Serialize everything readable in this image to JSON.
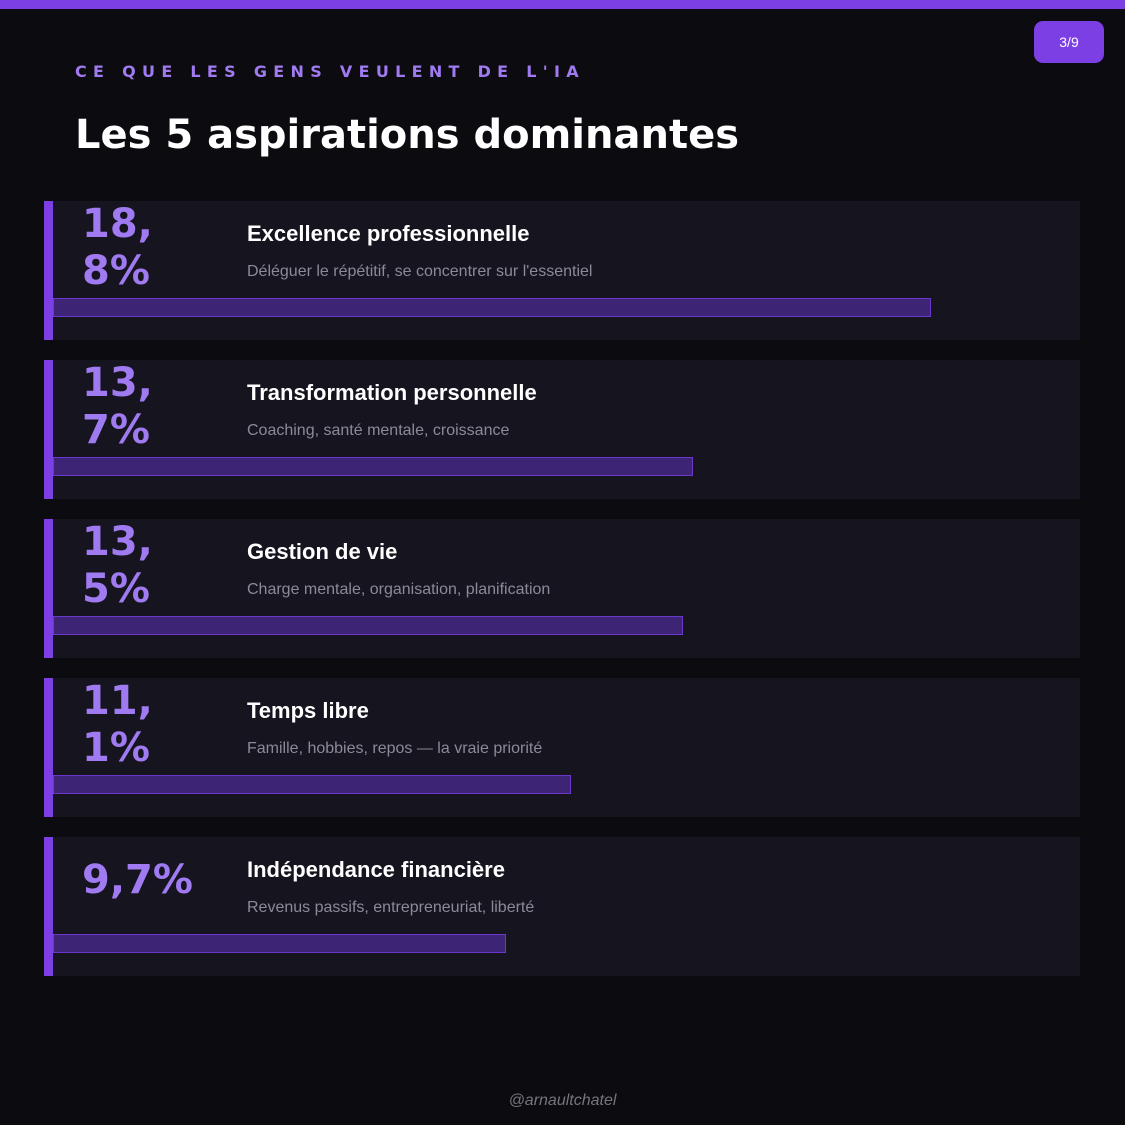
{
  "header": {
    "page_indicator": "3/9",
    "kicker": "CE QUE LES GENS VEULENT DE L'IA",
    "title": "Les 5 aspirations dominantes"
  },
  "colors": {
    "accent": "#7b3fe4",
    "accent_light": "#a07af0",
    "bar_fill": "#3d2475",
    "background": "#0c0b10",
    "card": "#15141f"
  },
  "chart_data": {
    "type": "bar",
    "orientation": "horizontal",
    "title": "Les 5 aspirations dominantes",
    "unit": "%",
    "xlim": [
      0,
      22
    ],
    "categories": [
      "Excellence professionnelle",
      "Transformation personnelle",
      "Gestion de vie",
      "Temps libre",
      "Indépendance financière"
    ],
    "values": [
      18.8,
      13.7,
      13.5,
      11.1,
      9.7
    ],
    "items": [
      {
        "value": 18.8,
        "value_label": "18,8%",
        "label": "Excellence professionnelle",
        "description": "Déléguer le répétitif, se concentrer sur l'essentiel"
      },
      {
        "value": 13.7,
        "value_label": "13,7%",
        "label": "Transformation personnelle",
        "description": "Coaching, santé mentale, croissance"
      },
      {
        "value": 13.5,
        "value_label": "13,5%",
        "label": "Gestion de vie",
        "description": "Charge mentale, organisation, planification"
      },
      {
        "value": 11.1,
        "value_label": "11,1%",
        "label": "Temps libre",
        "description": "Famille, hobbies, repos — la vraie priorité"
      },
      {
        "value": 9.7,
        "value_label": "9,7%",
        "label": "Indépendance financière",
        "description": "Revenus passifs, entrepreneuriat, liberté"
      }
    ]
  },
  "footer": {
    "handle": "@arnaultchatel"
  }
}
